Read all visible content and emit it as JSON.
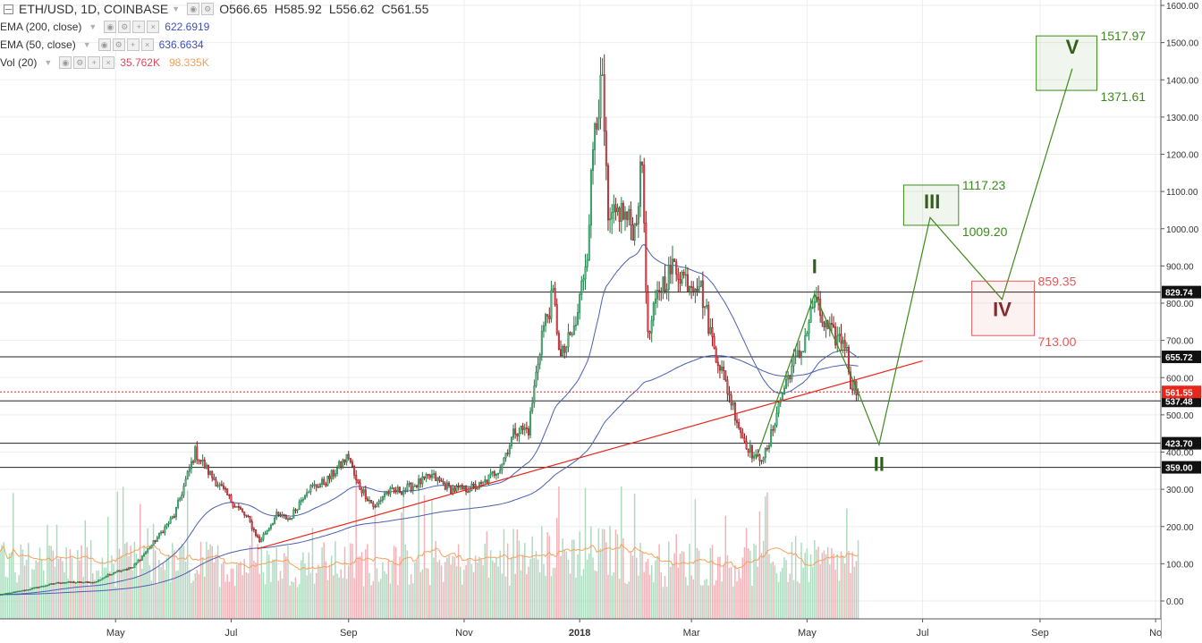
{
  "header": {
    "symbol": "ETH/USD, 1D, COINBASE",
    "ohlc": [
      {
        "label": "O",
        "value": "566.65"
      },
      {
        "label": "H",
        "value": "585.92"
      },
      {
        "label": "L",
        "value": "556.62"
      },
      {
        "label": "C",
        "value": "561.55"
      }
    ],
    "indicators": [
      {
        "name": "EMA (200, close)",
        "values": [
          {
            "text": "622.6919",
            "color": "#3f51b5"
          }
        ]
      },
      {
        "name": "EMA (50, close)",
        "values": [
          {
            "text": "636.6634",
            "color": "#3f51b5"
          }
        ]
      },
      {
        "name": "Vol (20)",
        "values": [
          {
            "text": "35.762K",
            "color": "#e0485a"
          },
          {
            "text": "98.335K",
            "color": "#f0a060"
          }
        ]
      }
    ]
  },
  "chart_data": {
    "type": "candlestick",
    "y_axis": {
      "min": -50,
      "max": 1600,
      "position": "right",
      "tick_values": [
        0,
        100,
        200,
        300,
        400,
        500,
        600,
        700,
        800,
        900,
        1000,
        1100,
        1200,
        1300,
        1400,
        1500,
        1600
      ],
      "tick_labels": [
        "0.00",
        "100.00",
        "200.00",
        "300.00",
        "400.00",
        "500.00",
        "600.00",
        "700.00",
        "800.00",
        "900.00",
        "1000.00",
        "1100.00",
        "1200.00",
        "1300.00",
        "1400.00",
        "1500.00",
        "1600.00"
      ]
    },
    "x_axis": {
      "start": "2017-03-01",
      "end": "2018-10-31",
      "labels": [
        {
          "date": "2017-05-01",
          "text": "May"
        },
        {
          "date": "2017-07-01",
          "text": "Jul"
        },
        {
          "date": "2017-09-01",
          "text": "Sep"
        },
        {
          "date": "2017-11-01",
          "text": "Nov"
        },
        {
          "date": "2018-01-01",
          "text": "2018"
        },
        {
          "date": "2018-03-01",
          "text": "Mar"
        },
        {
          "date": "2018-05-01",
          "text": "May"
        },
        {
          "date": "2018-07-01",
          "text": "Jul"
        },
        {
          "date": "2018-09-01",
          "text": "Sep"
        },
        {
          "date": "2018-11-01",
          "text": "No"
        }
      ]
    },
    "grid": true,
    "colors": {
      "up": "#53b987",
      "down": "#eb4d5c",
      "ema": "#4a5fb0",
      "vol_ma": "#f5a15a",
      "trend": "#e8261c",
      "wave": "#3c8a1c",
      "wave_iv": "#e55a5a"
    },
    "price_anchors": [
      [
        "2017-03-01",
        17
      ],
      [
        "2017-03-15",
        30
      ],
      [
        "2017-04-01",
        50
      ],
      [
        "2017-04-20",
        50
      ],
      [
        "2017-05-01",
        80
      ],
      [
        "2017-05-10",
        90
      ],
      [
        "2017-05-20",
        150
      ],
      [
        "2017-06-01",
        230
      ],
      [
        "2017-06-12",
        400
      ],
      [
        "2017-06-20",
        340
      ],
      [
        "2017-07-01",
        270
      ],
      [
        "2017-07-10",
        220
      ],
      [
        "2017-07-16",
        160
      ],
      [
        "2017-07-25",
        230
      ],
      [
        "2017-08-01",
        220
      ],
      [
        "2017-08-10",
        300
      ],
      [
        "2017-08-20",
        320
      ],
      [
        "2017-09-01",
        390
      ],
      [
        "2017-09-05",
        320
      ],
      [
        "2017-09-15",
        250
      ],
      [
        "2017-09-20",
        290
      ],
      [
        "2017-10-01",
        300
      ],
      [
        "2017-10-15",
        335
      ],
      [
        "2017-10-25",
        300
      ],
      [
        "2017-11-01",
        300
      ],
      [
        "2017-11-10",
        310
      ],
      [
        "2017-11-20",
        360
      ],
      [
        "2017-11-28",
        460
      ],
      [
        "2017-12-05",
        460
      ],
      [
        "2017-12-12",
        720
      ],
      [
        "2017-12-18",
        820
      ],
      [
        "2017-12-22",
        650
      ],
      [
        "2017-12-30",
        740
      ],
      [
        "2018-01-05",
        950
      ],
      [
        "2018-01-09",
        1300
      ],
      [
        "2018-01-13",
        1380
      ],
      [
        "2018-01-16",
        1000
      ],
      [
        "2018-01-22",
        1050
      ],
      [
        "2018-01-30",
        1000
      ],
      [
        "2018-02-03",
        1180
      ],
      [
        "2018-02-06",
        700
      ],
      [
        "2018-02-12",
        840
      ],
      [
        "2018-02-20",
        900
      ],
      [
        "2018-02-27",
        860
      ],
      [
        "2018-03-05",
        860
      ],
      [
        "2018-03-12",
        700
      ],
      [
        "2018-03-20",
        570
      ],
      [
        "2018-03-28",
        440
      ],
      [
        "2018-04-04",
        380
      ],
      [
        "2018-04-10",
        400
      ],
      [
        "2018-04-15",
        510
      ],
      [
        "2018-04-22",
        620
      ],
      [
        "2018-04-28",
        670
      ],
      [
        "2018-05-05",
        810
      ],
      [
        "2018-05-10",
        740
      ],
      [
        "2018-05-15",
        710
      ],
      [
        "2018-05-21",
        700
      ],
      [
        "2018-05-24",
        590
      ],
      [
        "2018-05-28",
        561.55
      ]
    ],
    "horizontal_levels": [
      {
        "value": 829.74,
        "label": "829.74"
      },
      {
        "value": 655.72,
        "label": "655.72"
      },
      {
        "value": 537.48,
        "label": "537.48"
      },
      {
        "value": 423.7,
        "label": "423.70"
      },
      {
        "value": 359.0,
        "label": "359.00"
      }
    ],
    "last_price": {
      "value": 561.55,
      "label": "561.55"
    },
    "trendline": {
      "from": [
        "2017-07-15",
        140
      ],
      "to": [
        "2018-07-01",
        645
      ]
    },
    "wave_path": [
      [
        "2018-04-04",
        380
      ],
      [
        "2018-05-05",
        825
      ],
      [
        "2018-05-28",
        561.55
      ],
      [
        "2018-06-08",
        420
      ],
      [
        "2018-07-05",
        1030
      ],
      [
        "2018-08-12",
        810
      ],
      [
        "2018-09-18",
        1430
      ]
    ],
    "wave_labels": [
      {
        "text": "I",
        "date": "2018-05-05",
        "value": 880,
        "color": "#2e5e1a"
      },
      {
        "text": "II",
        "date": "2018-06-08",
        "value": 350,
        "color": "#2e5e1a"
      },
      {
        "text": "III",
        "date": "2018-07-06",
        "value": 1055,
        "color": "#2e5e1a"
      },
      {
        "text": "IV",
        "date": "2018-08-12",
        "value": 765,
        "color": "#7a2a2a"
      },
      {
        "text": "V",
        "date": "2018-09-18",
        "value": 1470,
        "color": "#2e5e1a"
      }
    ],
    "target_boxes": [
      {
        "name": "III",
        "from": "2018-06-21",
        "to": "2018-07-20",
        "low": 1009.2,
        "high": 1117.23,
        "top_label": "1117.23",
        "bottom_label": "1009.20",
        "color": "#3c8a1c"
      },
      {
        "name": "IV",
        "from": "2018-07-27",
        "to": "2018-08-29",
        "low": 713.0,
        "high": 859.35,
        "top_label": "859.35",
        "bottom_label": "713.00",
        "color": "#e55a5a"
      },
      {
        "name": "V",
        "from": "2018-08-30",
        "to": "2018-10-01",
        "low": 1371.61,
        "high": 1517.97,
        "top_label": "1517.97",
        "bottom_label": "1371.61",
        "color": "#3c8a1c"
      }
    ]
  }
}
